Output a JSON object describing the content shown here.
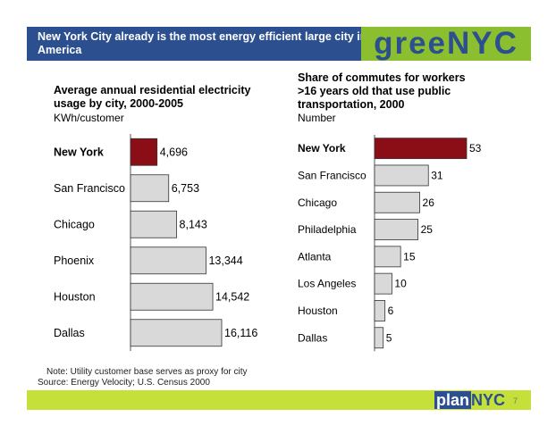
{
  "header": {
    "title": "New York City already is the most energy efficient large city in America",
    "brand": "greeNYC"
  },
  "chart_data": [
    {
      "type": "bar",
      "orientation": "horizontal",
      "title": "Average annual residential electricity usage by city, 2000-2005",
      "unit": "KWh/customer",
      "categories": [
        "New York",
        "San Francisco",
        "Chicago",
        "Phoenix",
        "Houston",
        "Dallas"
      ],
      "values": [
        4696,
        6753,
        8143,
        13344,
        14542,
        16116
      ],
      "value_labels": [
        "4,696",
        "6,753",
        "8,143",
        "13,344",
        "14,542",
        "16,116"
      ],
      "highlight_index": 0,
      "xlim": [
        0,
        16116
      ]
    },
    {
      "type": "bar",
      "orientation": "horizontal",
      "title": "Share of commutes for workers >16 years old that use public transportation, 2000",
      "unit": "Number",
      "categories": [
        "New York",
        "San Francisco",
        "Chicago",
        "Philadelphia",
        "Atlanta",
        "Los Angeles",
        "Houston",
        "Dallas"
      ],
      "values": [
        53,
        31,
        26,
        25,
        15,
        10,
        6,
        5
      ],
      "value_labels": [
        "53",
        "31",
        "26",
        "25",
        "15",
        "10",
        "6",
        "5"
      ],
      "highlight_index": 0,
      "xlim": [
        0,
        53
      ]
    }
  ],
  "colors": {
    "highlight": "#8b0d16",
    "bar": "#d9d9d9",
    "header": "#2b4f8f",
    "brand_bg": "#8cbf2f",
    "footer": "#c5e03a"
  },
  "footnotes": {
    "note": "Note: Utility customer base serves as proxy for city",
    "source": "Source: Energy Velocity; U.S. Census 2000"
  },
  "footer": {
    "logo_plan": "plan",
    "logo_nyc": "NYC",
    "page_number": "7"
  }
}
